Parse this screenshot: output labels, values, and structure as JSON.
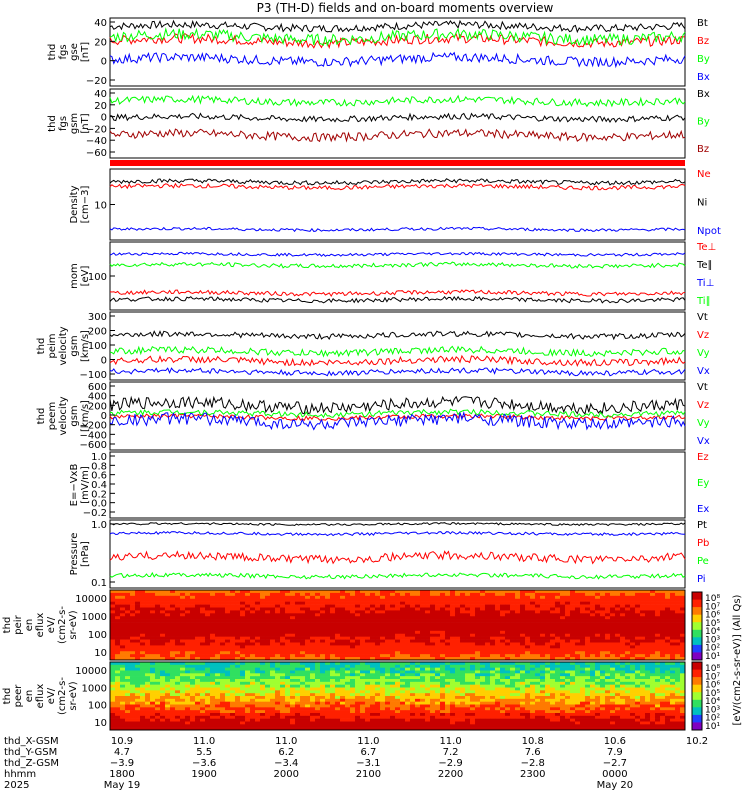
{
  "title": "P3 (TH-D) fields and on-board moments overview",
  "colors": {
    "black": "#000000",
    "red": "#ff0000",
    "green": "#00ff00",
    "blue": "#0000ff",
    "darkred": "#a00000"
  },
  "chart_data": [
    {
      "type": "line",
      "id": "fgs_gse",
      "ylabel": [
        "thd",
        "fgs",
        "gse",
        "[nT]"
      ],
      "yticks": [
        "40",
        "20",
        "0",
        "−20"
      ],
      "ylim": [
        -30,
        42
      ],
      "series": [
        {
          "name": "Bt",
          "color": "#000000",
          "level": 33,
          "noise": 4
        },
        {
          "name": "Bz",
          "color": "#ff0000",
          "level": 18,
          "noise": 5
        },
        {
          "name": "By",
          "color": "#00ff00",
          "level": 22,
          "noise": 6
        },
        {
          "name": "Bx",
          "color": "#0000ff",
          "level": -2,
          "noise": 5
        }
      ]
    },
    {
      "type": "line",
      "id": "fgs_gsm",
      "ylabel": [
        "thd",
        "fgs",
        "gsm",
        "[nT]"
      ],
      "yticks": [
        "40",
        "20",
        "0",
        "−20",
        "−40",
        "−60"
      ],
      "ylim": [
        -70,
        45
      ],
      "series": [
        {
          "name": "Bx",
          "color": "#000000",
          "level": -3,
          "noise": 5
        },
        {
          "name": "By",
          "color": "#00ff00",
          "level": 25,
          "noise": 6
        },
        {
          "name": "Bz",
          "color": "#a00000",
          "level": -32,
          "noise": 7
        }
      ]
    },
    {
      "type": "bar",
      "id": "mode_bar",
      "color": "#ff0000"
    },
    {
      "type": "line",
      "id": "density",
      "ylabel": [
        "Density",
        "[cm−3]"
      ],
      "yticks": [
        "10"
      ],
      "ylog": true,
      "series": [
        {
          "name": "Ne",
          "color": "#ff0000",
          "level": 0.75,
          "noise": 0.03
        },
        {
          "name": "Ni",
          "color": "#000000",
          "level": 0.82,
          "noise": 0.03
        },
        {
          "name": "Npot",
          "color": "#0000ff",
          "level": 0.15,
          "noise": 0.02
        }
      ]
    },
    {
      "type": "line",
      "id": "temperature",
      "ylabel": [
        "mom",
        "[eV]"
      ],
      "yticks": [
        "100"
      ],
      "ylog": true,
      "series": [
        {
          "name": "Te⊥",
          "color": "#ff0000",
          "level": 0.25,
          "noise": 0.03
        },
        {
          "name": "Te∥",
          "color": "#000000",
          "level": 0.15,
          "noise": 0.03
        },
        {
          "name": "Ti⊥",
          "color": "#0000ff",
          "level": 0.82,
          "noise": 0.02
        },
        {
          "name": "Ti∥",
          "color": "#00ff00",
          "level": 0.66,
          "noise": 0.03
        }
      ]
    },
    {
      "type": "line",
      "id": "peim_velocity",
      "ylabel": [
        "thd",
        "peim",
        "velocity",
        "gsm",
        "[km/s]"
      ],
      "yticks": [
        "300",
        "200",
        "100",
        "0",
        "−100"
      ],
      "ylim": [
        -180,
        320
      ],
      "series": [
        {
          "name": "Vt",
          "color": "#000000",
          "level": 150,
          "noise": 20
        },
        {
          "name": "Vz",
          "color": "#ff0000",
          "level": -40,
          "noise": 25
        },
        {
          "name": "Vy",
          "color": "#00ff00",
          "level": 30,
          "noise": 25
        },
        {
          "name": "Vx",
          "color": "#0000ff",
          "level": -120,
          "noise": 20
        }
      ]
    },
    {
      "type": "line",
      "id": "peem_velocity",
      "ylabel": [
        "thd",
        "peem",
        "velocity",
        "gsm",
        "[km/s]"
      ],
      "yticks": [
        "600",
        "400",
        "200",
        "0",
        "−200",
        "−400",
        "−600"
      ],
      "ylim": [
        -620,
        620
      ],
      "series": [
        {
          "name": "Vt",
          "color": "#000000",
          "level": 200,
          "noise": 110
        },
        {
          "name": "Vz",
          "color": "#ff0000",
          "level": -20,
          "noise": 40
        },
        {
          "name": "Vy",
          "color": "#00ff00",
          "level": 50,
          "noise": 50
        },
        {
          "name": "Vx",
          "color": "#0000ff",
          "level": -100,
          "noise": 110
        }
      ]
    },
    {
      "type": "line",
      "id": "efield",
      "ylabel": [
        "E=−VxB",
        "[mV/m]"
      ],
      "yticks": [
        "1.0",
        "0.8",
        "0.6",
        "0.4",
        "0.2",
        "0.0",
        "−0.2"
      ],
      "ylim": [
        -0.25,
        1.0
      ],
      "series": [
        {
          "name": "Ez",
          "color": "#ff0000"
        },
        {
          "name": "Ey",
          "color": "#00ff00"
        },
        {
          "name": "Ex",
          "color": "#0000ff"
        }
      ]
    },
    {
      "type": "line",
      "id": "pressure",
      "ylabel": [
        "Pressure",
        "[nPa]"
      ],
      "yticks": [
        "1.0",
        "0.1"
      ],
      "ylog": true,
      "series": [
        {
          "name": "Pt",
          "color": "#000000",
          "level": 0.94,
          "noise": 0.015
        },
        {
          "name": "Pb",
          "color": "#ff0000",
          "level": 0.45,
          "noise": 0.06
        },
        {
          "name": "Pe",
          "color": "#00ff00",
          "level": 0.18,
          "noise": 0.03
        },
        {
          "name": "Pi",
          "color": "#0000ff",
          "level": 0.8,
          "noise": 0.02
        }
      ]
    },
    {
      "type": "heatmap",
      "id": "peir_eflux",
      "ylabel": [
        "thd",
        "peir",
        "en",
        "eflux",
        "eV/",
        "(cm2-s-",
        "sr-eV)"
      ],
      "yticks": [
        "10000",
        "1000",
        "100",
        "10"
      ]
    },
    {
      "type": "heatmap",
      "id": "peer_eflux",
      "ylabel": [
        "thd",
        "peer",
        "en",
        "eflux",
        "eV/",
        "(cm2-s-",
        "sr-eV)"
      ],
      "yticks": [
        "10000",
        "1000",
        "100",
        "10"
      ]
    }
  ],
  "colorbar": {
    "label": "[eV/(cm2-s-sr-eV)] (All Qs)",
    "ticks_a": [
      "10⁸",
      "10⁷",
      "10⁶",
      "10⁵",
      "10⁴",
      "10³",
      "10²",
      "10¹"
    ],
    "ticks_b": [
      "10⁸",
      "10⁷",
      "10⁶",
      "10⁵",
      "10⁴",
      "10³",
      "10²",
      "10¹"
    ]
  },
  "xaxis": {
    "rows": [
      {
        "label": "thd_X-GSM",
        "values": [
          "10.9",
          "11.0",
          "11.0",
          "11.0",
          "11.0",
          "10.8",
          "10.6",
          "10.2"
        ]
      },
      {
        "label": "thd_Y-GSM",
        "values": [
          "4.7",
          "5.5",
          "6.2",
          "6.7",
          "7.2",
          "7.6",
          "7.9",
          ""
        ]
      },
      {
        "label": "thd_Z-GSM",
        "values": [
          "−3.9",
          "−3.6",
          "−3.4",
          "−3.1",
          "−2.9",
          "−2.8",
          "−2.7",
          ""
        ]
      },
      {
        "label": "hhmm",
        "values": [
          "1800",
          "1900",
          "2000",
          "2100",
          "2200",
          "2300",
          "0000",
          ""
        ]
      },
      {
        "label": "2025",
        "values": [
          "May 19",
          "",
          "",
          "",
          "",
          "",
          "May 20",
          ""
        ]
      }
    ]
  }
}
